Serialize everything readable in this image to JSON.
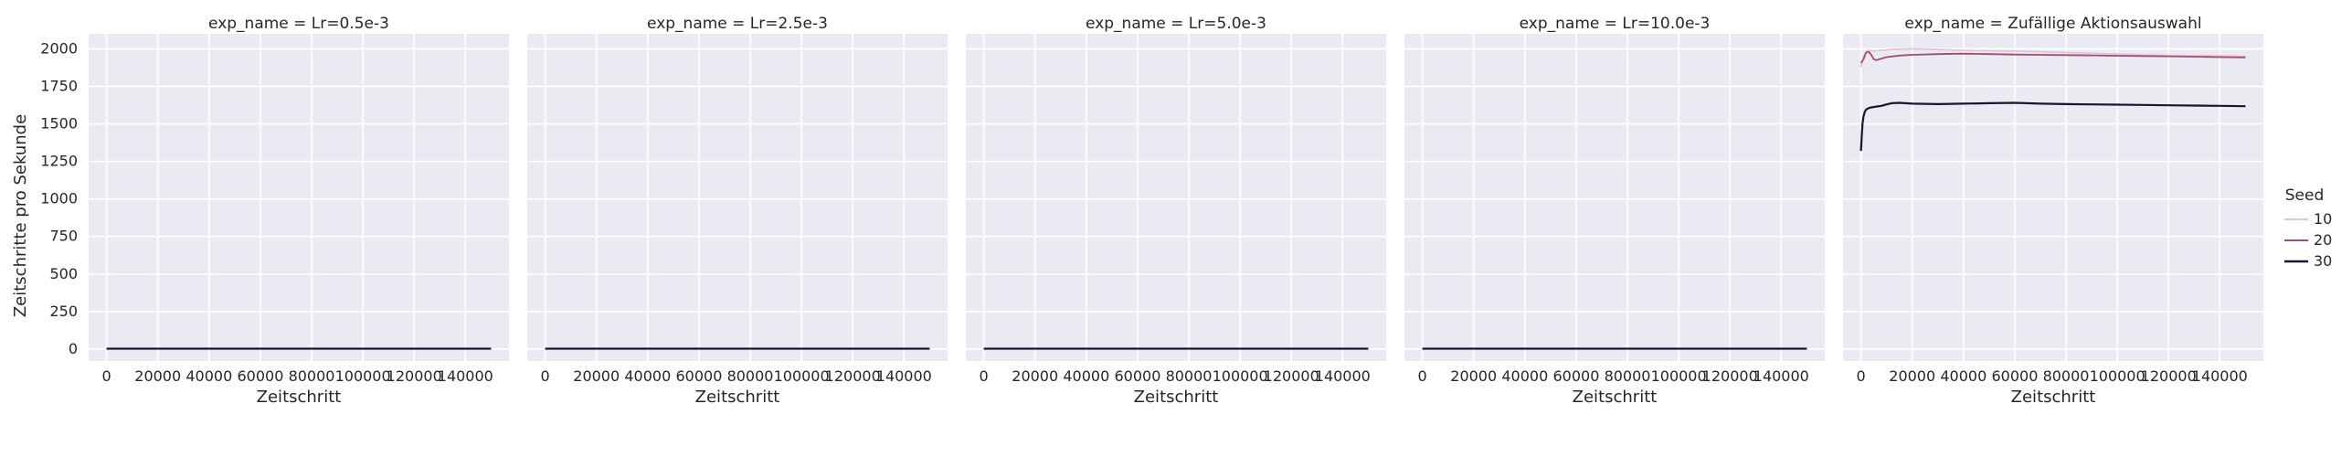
{
  "chart_data": {
    "type": "line",
    "facet_by": "exp_name",
    "ylabel": "Zeitschritte pro Sekunde",
    "xlabel": "Zeitschritt",
    "ylim": [
      -80,
      2100
    ],
    "xlim": [
      -7000,
      157000
    ],
    "y_ticks": [
      0,
      250,
      500,
      750,
      1000,
      1250,
      1500,
      1750,
      2000
    ],
    "x_ticks": [
      0,
      20000,
      40000,
      60000,
      80000,
      100000,
      120000,
      140000
    ],
    "grid": true,
    "legend": {
      "title": "Seed",
      "placement": "right",
      "entries": [
        {
          "label": "10",
          "color": "#e8c4cc"
        },
        {
          "label": "20",
          "color": "#a34a7e"
        },
        {
          "label": "30",
          "color": "#1e1430"
        }
      ]
    },
    "panels": [
      {
        "title": "exp_name = Lr=0.5e-3",
        "series": [
          {
            "name": "10",
            "x": [
              0,
              150000
            ],
            "y": [
              2,
              2
            ]
          },
          {
            "name": "20",
            "x": [
              0,
              150000
            ],
            "y": [
              2,
              2
            ]
          },
          {
            "name": "30",
            "x": [
              0,
              150000
            ],
            "y": [
              2,
              2
            ]
          }
        ]
      },
      {
        "title": "exp_name = Lr=2.5e-3",
        "series": [
          {
            "name": "10",
            "x": [
              0,
              150000
            ],
            "y": [
              2,
              2
            ]
          },
          {
            "name": "20",
            "x": [
              0,
              150000
            ],
            "y": [
              2,
              2
            ]
          },
          {
            "name": "30",
            "x": [
              0,
              150000
            ],
            "y": [
              2,
              2
            ]
          }
        ]
      },
      {
        "title": "exp_name = Lr=5.0e-3",
        "series": [
          {
            "name": "10",
            "x": [
              0,
              150000
            ],
            "y": [
              2,
              2
            ]
          },
          {
            "name": "20",
            "x": [
              0,
              150000
            ],
            "y": [
              2,
              2
            ]
          },
          {
            "name": "30",
            "x": [
              0,
              150000
            ],
            "y": [
              2,
              2
            ]
          }
        ]
      },
      {
        "title": "exp_name = Lr=10.0e-3",
        "series": [
          {
            "name": "10",
            "x": [
              0,
              150000
            ],
            "y": [
              2,
              2
            ]
          },
          {
            "name": "20",
            "x": [
              0,
              150000
            ],
            "y": [
              2,
              2
            ]
          },
          {
            "name": "30",
            "x": [
              0,
              150000
            ],
            "y": [
              2,
              2
            ]
          }
        ]
      },
      {
        "title": "exp_name = Zufällige Aktionsauswahl",
        "series": [
          {
            "name": "10",
            "x": [
              0,
              1000,
              2000,
              3000,
              5000,
              8000,
              12000,
              20000,
              30000,
              40000,
              60000,
              80000,
              100000,
              120000,
              150000
            ],
            "y": [
              1880,
              1950,
              1980,
              1990,
              1985,
              1990,
              1995,
              2000,
              1995,
              1990,
              1985,
              1975,
              1965,
              1955,
              1950
            ]
          },
          {
            "name": "20",
            "x": [
              0,
              1000,
              2000,
              3000,
              4000,
              5000,
              6000,
              8000,
              10000,
              15000,
              20000,
              30000,
              40000,
              50000,
              60000,
              70000,
              80000,
              90000,
              100000,
              110000,
              120000,
              130000,
              140000,
              150000
            ],
            "y": [
              1905,
              1930,
              1975,
              1980,
              1960,
              1930,
              1925,
              1935,
              1945,
              1955,
              1960,
              1965,
              1968,
              1965,
              1962,
              1960,
              1958,
              1956,
              1954,
              1952,
              1950,
              1948,
              1945,
              1943
            ]
          },
          {
            "name": "30",
            "x": [
              0,
              300,
              600,
              1000,
              1500,
              2000,
              3000,
              4000,
              5000,
              6000,
              8000,
              10000,
              12000,
              15000,
              20000,
              30000,
              40000,
              50000,
              60000,
              70000,
              80000,
              90000,
              100000,
              110000,
              120000,
              130000,
              140000,
              150000
            ],
            "y": [
              1320,
              1420,
              1500,
              1550,
              1580,
              1595,
              1605,
              1610,
              1612,
              1615,
              1620,
              1630,
              1638,
              1640,
              1635,
              1632,
              1635,
              1638,
              1640,
              1635,
              1632,
              1630,
              1628,
              1626,
              1624,
              1622,
              1620,
              1618
            ]
          }
        ]
      }
    ]
  }
}
